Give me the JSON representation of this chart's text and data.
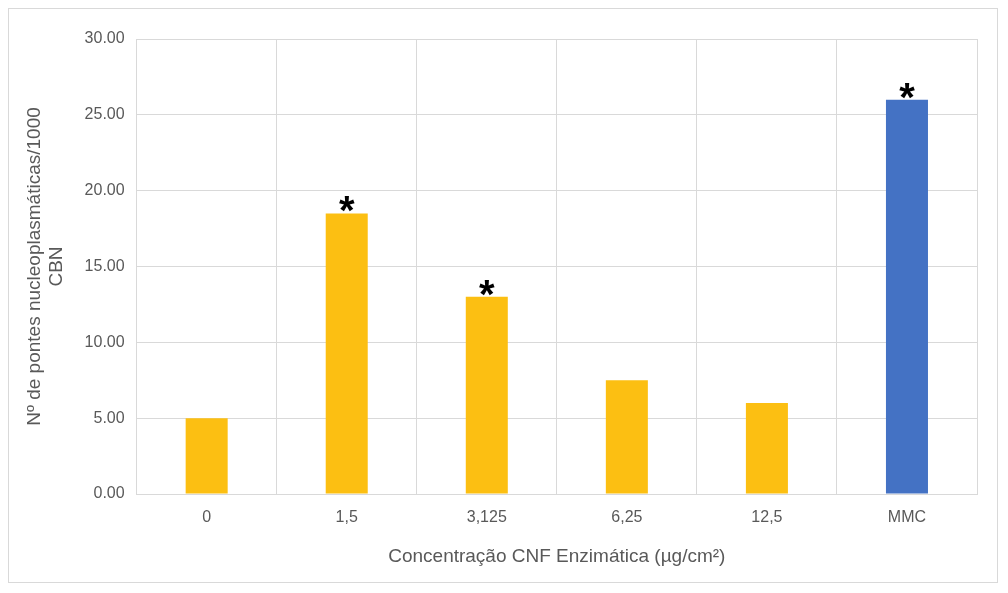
{
  "chart_data": {
    "type": "bar",
    "xlabel": "Concentração CNF Enzimática (µg/cm²)",
    "ylabel": "Nº de pontes nucleoplasmáticas/1000 CBN",
    "categories": [
      "0",
      "1,5",
      "3,125",
      "6,25",
      "12,5",
      "MMC"
    ],
    "values": [
      5,
      18.5,
      13,
      7.5,
      6,
      26
    ],
    "colors": [
      "#fcbf12",
      "#fcbf12",
      "#fcbf12",
      "#fcbf12",
      "#fcbf12",
      "#4472c4"
    ],
    "ylim": [
      0,
      30
    ],
    "yticks": [
      {
        "value": 0,
        "label": "0.00"
      },
      {
        "value": 5,
        "label": "5.00"
      },
      {
        "value": 10,
        "label": "10.00"
      },
      {
        "value": 15,
        "label": "15.00"
      },
      {
        "value": 20,
        "label": "20.00"
      },
      {
        "value": 25,
        "label": "25.00"
      },
      {
        "value": 30,
        "label": "30.00"
      }
    ],
    "grid": true,
    "annotations": [
      {
        "text": "*",
        "x": "1,5",
        "y": 18.5
      },
      {
        "text": "*",
        "x": "3,125",
        "y": 13
      },
      {
        "text": "*",
        "x": "MMC",
        "y": 26
      }
    ]
  }
}
